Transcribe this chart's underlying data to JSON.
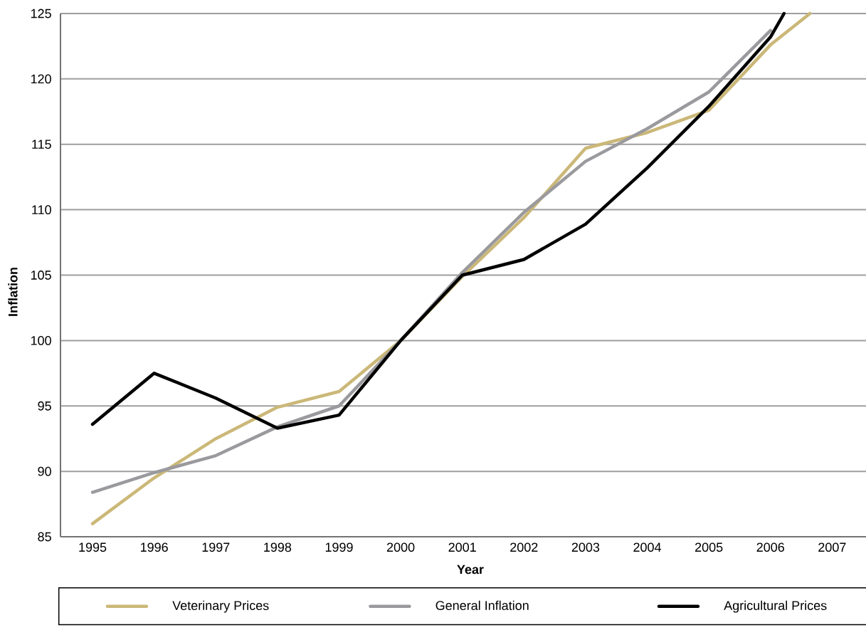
{
  "chart_data": {
    "type": "line",
    "xlabel": "Year",
    "ylabel": "Inflation",
    "xlim": [
      1994.48,
      2007.55
    ],
    "ylim": [
      85,
      125
    ],
    "xticks": [
      1995,
      1996,
      1997,
      1998,
      1999,
      2000,
      2001,
      2002,
      2003,
      2004,
      2005,
      2006,
      2007
    ],
    "yticks": [
      85,
      90,
      95,
      100,
      105,
      110,
      115,
      120,
      125
    ],
    "grid": "y",
    "legend": "bottom",
    "marker": "none",
    "line_style": "solid",
    "series": [
      {
        "name": "Veterinary Prices",
        "color": "#cbb878",
        "x": [
          1995,
          1996,
          1997,
          1998,
          1999,
          2000,
          2001,
          2002,
          2003,
          2004,
          2005,
          2006,
          2006.64
        ],
        "values": [
          86.0,
          89.5,
          92.5,
          94.9,
          96.1,
          100,
          104.9,
          109.4,
          114.7,
          115.9,
          117.6,
          122.6,
          125
        ]
      },
      {
        "name": "General Inflation",
        "color": "#9a9a9e",
        "x": [
          1995,
          1996,
          1997,
          1998,
          1999,
          2000,
          2001,
          2002,
          2003,
          2004,
          2005,
          2006
        ],
        "values": [
          88.4,
          89.9,
          91.2,
          93.4,
          95.0,
          100,
          105.2,
          109.8,
          113.7,
          116.2,
          119.0,
          123.7
        ]
      },
      {
        "name": "Agricultural Prices",
        "color": "#000000",
        "x": [
          1995,
          1996,
          1997,
          1998,
          1999,
          2000,
          2001,
          2002,
          2003,
          2004,
          2005,
          2006,
          2006.22
        ],
        "values": [
          93.6,
          97.5,
          95.6,
          93.3,
          94.3,
          100,
          105.0,
          106.2,
          108.9,
          113.2,
          117.9,
          123.2,
          125
        ]
      }
    ]
  }
}
